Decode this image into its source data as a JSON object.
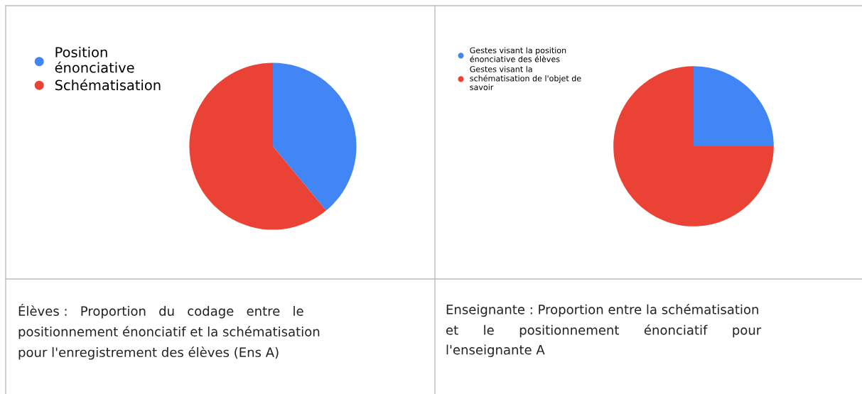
{
  "chart_data": [
    {
      "type": "pie",
      "categories": [
        "Position\nénonciative",
        "Schématisation"
      ],
      "values": [
        39,
        61
      ],
      "colors": [
        "#4285f4",
        "#ea4335"
      ],
      "legend": "top left",
      "annotations": [
        "Élèves :   Proportion   du   codage   entre   le\npositionnement énonciatif et la schématisation\npour l'enregistrement des élèves (Ens A)"
      ]
    },
    {
      "type": "pie",
      "categories": [
        "Gestes visant la position\nénonciative des élèves",
        "Gestes visant la\nschématisation de l'objet de\nsavoir"
      ],
      "values": [
        25,
        75
      ],
      "colors": [
        "#4285f4",
        "#ea4335"
      ],
      "legend": "top left",
      "annotations": [
        "Enseignante : Proportion entre la schématisation\net      le      positionnement      énonciatif      pour\nl'enseignante A"
      ]
    }
  ]
}
